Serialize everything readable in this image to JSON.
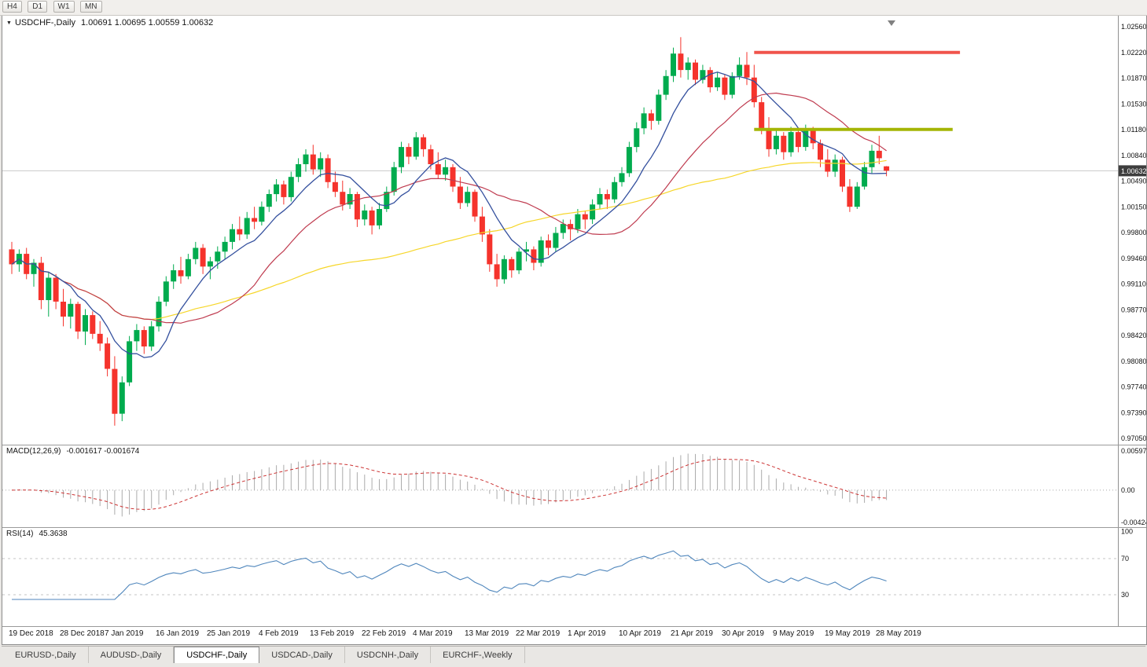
{
  "toolbar": {
    "timeframes": [
      {
        "label": "H4"
      },
      {
        "label": "D1"
      },
      {
        "label": "W1"
      },
      {
        "label": "MN"
      }
    ]
  },
  "window": {
    "title_symbol": "USDCHF-,Daily",
    "open": "1.00691",
    "high": "1.00695",
    "low": "1.00559",
    "close": "1.00632",
    "price_badge": "1.00632"
  },
  "macd_header": {
    "label": "MACD(12,26,9)",
    "values": "-0.001617 -0.001674"
  },
  "rsi_header": {
    "label": "RSI(14)",
    "value": "45.3638"
  },
  "tabs": [
    {
      "label": "EURUSD-,Daily",
      "active": false
    },
    {
      "label": "AUDUSD-,Daily",
      "active": false
    },
    {
      "label": "USDCHF-,Daily",
      "active": true
    },
    {
      "label": "USDCAD-,Daily",
      "active": false
    },
    {
      "label": "USDCNH-,Daily",
      "active": false
    },
    {
      "label": "EURCHF-,Weekly",
      "active": false
    }
  ],
  "colors": {
    "background": "#ffffff",
    "bull": "#00ab4e",
    "bear": "#f5332c",
    "ma_fast": "#34509e",
    "ma_mid": "#bf3b4f",
    "ma_slow": "#f6d629",
    "resistance": "#f0544c",
    "support": "#a4b505",
    "macd_histogram": "#ababab",
    "macd_signal": "#cc3333",
    "rsi_line": "#4f86bc",
    "grid": "#c9c9c9",
    "axis_line": "#909090",
    "badge_bg": "#3d3d3d"
  },
  "chart_data": {
    "type": "candlestick",
    "title": "USDCHF-,Daily",
    "y_axis": {
      "min": 0.9705,
      "max": 1.0256,
      "tick_labels": [
        "1.02560",
        "1.02220",
        "1.01870",
        "1.01530",
        "1.01180",
        "1.00840",
        "1.00490",
        "1.00150",
        "0.99800",
        "0.99460",
        "0.99110",
        "0.98770",
        "0.98420",
        "0.98080",
        "0.97740",
        "0.97390",
        "0.97050"
      ]
    },
    "x_axis": {
      "ticks": [
        {
          "i": 0,
          "label": "19 Dec 2018"
        },
        {
          "i": 7,
          "label": "28 Dec 2018"
        },
        {
          "i": 13,
          "label": "7 Jan 2019"
        },
        {
          "i": 20,
          "label": "16 Jan 2019"
        },
        {
          "i": 27,
          "label": "25 Jan 2019"
        },
        {
          "i": 34,
          "label": "4 Feb 2019"
        },
        {
          "i": 41,
          "label": "13 Feb 2019"
        },
        {
          "i": 48,
          "label": "22 Feb 2019"
        },
        {
          "i": 55,
          "label": "4 Mar 2019"
        },
        {
          "i": 62,
          "label": "13 Mar 2019"
        },
        {
          "i": 69,
          "label": "22 Mar 2019"
        },
        {
          "i": 76,
          "label": "1 Apr 2019"
        },
        {
          "i": 83,
          "label": "10 Apr 2019"
        },
        {
          "i": 90,
          "label": "21 Apr 2019"
        },
        {
          "i": 97,
          "label": "30 Apr 2019"
        },
        {
          "i": 104,
          "label": "9 May 2019"
        },
        {
          "i": 111,
          "label": "19 May 2019"
        },
        {
          "i": 118,
          "label": "28 May 2019"
        }
      ]
    },
    "ohlc": [
      [
        0.9958,
        0.9968,
        0.9925,
        0.9938
      ],
      [
        0.9938,
        0.9958,
        0.9928,
        0.9952
      ],
      [
        0.9952,
        0.996,
        0.9918,
        0.9925
      ],
      [
        0.9925,
        0.9945,
        0.9908,
        0.994
      ],
      [
        0.994,
        0.9948,
        0.9878,
        0.989
      ],
      [
        0.989,
        0.9928,
        0.9868,
        0.992
      ],
      [
        0.992,
        0.9925,
        0.9878,
        0.9888
      ],
      [
        0.9888,
        0.9905,
        0.9855,
        0.9868
      ],
      [
        0.9868,
        0.9892,
        0.9852,
        0.9885
      ],
      [
        0.9885,
        0.9888,
        0.9838,
        0.9848
      ],
      [
        0.9848,
        0.9878,
        0.983,
        0.987
      ],
      [
        0.987,
        0.9875,
        0.9838,
        0.9845
      ],
      [
        0.9845,
        0.9862,
        0.9822,
        0.9832
      ],
      [
        0.9832,
        0.984,
        0.9788,
        0.9798
      ],
      [
        0.9798,
        0.9815,
        0.9722,
        0.9738
      ],
      [
        0.9738,
        0.9788,
        0.9728,
        0.978
      ],
      [
        0.978,
        0.9842,
        0.9775,
        0.9835
      ],
      [
        0.9835,
        0.9858,
        0.9822,
        0.985
      ],
      [
        0.985,
        0.9855,
        0.9818,
        0.9828
      ],
      [
        0.9828,
        0.9862,
        0.9822,
        0.9855
      ],
      [
        0.9855,
        0.9895,
        0.9848,
        0.9888
      ],
      [
        0.9888,
        0.9922,
        0.9882,
        0.9915
      ],
      [
        0.9915,
        0.9938,
        0.9905,
        0.993
      ],
      [
        0.993,
        0.9948,
        0.9912,
        0.9922
      ],
      [
        0.9922,
        0.9952,
        0.9918,
        0.9945
      ],
      [
        0.9945,
        0.9968,
        0.9938,
        0.996
      ],
      [
        0.996,
        0.9965,
        0.9925,
        0.9935
      ],
      [
        0.9935,
        0.9948,
        0.9918,
        0.9942
      ],
      [
        0.9942,
        0.9962,
        0.9932,
        0.9955
      ],
      [
        0.9955,
        0.9975,
        0.9945,
        0.9968
      ],
      [
        0.9968,
        0.9992,
        0.9958,
        0.9985
      ],
      [
        0.9985,
        1.0002,
        0.997,
        0.9978
      ],
      [
        0.9978,
        1.0008,
        0.9972,
        1.0
      ],
      [
        1.0,
        1.0015,
        0.9985,
        0.9995
      ],
      [
        0.9995,
        1.0022,
        0.999,
        1.0015
      ],
      [
        1.0015,
        1.0038,
        1.0008,
        1.0032
      ],
      [
        1.0032,
        1.0052,
        1.0022,
        1.0045
      ],
      [
        1.0045,
        1.005,
        1.0018,
        1.0028
      ],
      [
        1.0028,
        1.0062,
        1.0022,
        1.0055
      ],
      [
        1.0055,
        1.008,
        1.0048,
        1.0072
      ],
      [
        1.0072,
        1.0092,
        1.0062,
        1.0085
      ],
      [
        1.0085,
        1.0098,
        1.0058,
        1.0065
      ],
      [
        1.0065,
        1.0088,
        1.0055,
        1.008
      ],
      [
        1.008,
        1.0085,
        1.004,
        1.0048
      ],
      [
        1.0048,
        1.0062,
        1.0028,
        1.0035
      ],
      [
        1.0035,
        1.005,
        1.001,
        1.0018
      ],
      [
        1.0018,
        1.004,
        1.0012,
        1.0032
      ],
      [
        1.0032,
        1.0035,
        0.9988,
        0.9998
      ],
      [
        0.9998,
        1.0018,
        0.999,
        1.001
      ],
      [
        1.001,
        1.0015,
        0.9978,
        0.999
      ],
      [
        0.999,
        1.002,
        0.9985,
        1.0012
      ],
      [
        1.0012,
        1.0042,
        1.0008,
        1.0035
      ],
      [
        1.0035,
        1.0075,
        1.003,
        1.0068
      ],
      [
        1.0068,
        1.0102,
        1.006,
        1.0095
      ],
      [
        1.0095,
        1.01,
        1.0072,
        1.0082
      ],
      [
        1.0082,
        1.0115,
        1.0078,
        1.0108
      ],
      [
        1.0108,
        1.0112,
        1.0082,
        1.0092
      ],
      [
        1.0092,
        1.0098,
        1.0065,
        1.0072
      ],
      [
        1.0072,
        1.0088,
        1.0052,
        1.0058
      ],
      [
        1.0058,
        1.0078,
        1.005,
        1.0068
      ],
      [
        1.0068,
        1.0072,
        1.0035,
        1.0042
      ],
      [
        1.0042,
        1.0055,
        1.0012,
        1.002
      ],
      [
        1.002,
        1.0042,
        1.0015,
        1.0035
      ],
      [
        1.0035,
        1.0038,
        0.9995,
        1.0002
      ],
      [
        1.0002,
        1.0015,
        0.9968,
        0.9978
      ],
      [
        0.9978,
        0.9985,
        0.9928,
        0.9938
      ],
      [
        0.9938,
        0.9952,
        0.9908,
        0.9918
      ],
      [
        0.9918,
        0.995,
        0.9912,
        0.9945
      ],
      [
        0.9945,
        0.9948,
        0.992,
        0.993
      ],
      [
        0.993,
        0.996,
        0.9925,
        0.9955
      ],
      [
        0.9955,
        0.9968,
        0.9942,
        0.9958
      ],
      [
        0.9958,
        0.9962,
        0.993,
        0.994
      ],
      [
        0.994,
        0.9975,
        0.9935,
        0.997
      ],
      [
        0.997,
        0.9978,
        0.995,
        0.996
      ],
      [
        0.996,
        0.9988,
        0.9955,
        0.998
      ],
      [
        0.998,
        0.9998,
        0.9972,
        0.9992
      ],
      [
        0.9992,
        0.9998,
        0.997,
        0.9985
      ],
      [
        0.9985,
        1.0012,
        0.998,
        1.0005
      ],
      [
        1.0005,
        1.001,
        0.9985,
        0.9998
      ],
      [
        0.9998,
        1.0025,
        0.9992,
        1.0018
      ],
      [
        1.0018,
        1.004,
        1.0012,
        1.0032
      ],
      [
        1.0032,
        1.0038,
        1.0012,
        1.0025
      ],
      [
        1.0025,
        1.0055,
        1.002,
        1.0048
      ],
      [
        1.0048,
        1.0068,
        1.0042,
        1.006
      ],
      [
        1.006,
        1.0102,
        1.0055,
        1.0095
      ],
      [
        1.0095,
        1.0128,
        1.0088,
        1.012
      ],
      [
        1.012,
        1.0148,
        1.0112,
        1.014
      ],
      [
        1.014,
        1.0145,
        1.0118,
        1.013
      ],
      [
        1.013,
        1.0172,
        1.0125,
        1.0165
      ],
      [
        1.0165,
        1.0198,
        1.0158,
        1.019
      ],
      [
        1.019,
        1.0228,
        1.0182,
        1.022
      ],
      [
        1.022,
        1.0242,
        1.0188,
        1.0198
      ],
      [
        1.0198,
        1.0215,
        1.0185,
        1.0208
      ],
      [
        1.0208,
        1.0212,
        1.0178,
        1.0185
      ],
      [
        1.0185,
        1.0205,
        1.018,
        1.0198
      ],
      [
        1.0198,
        1.0202,
        1.0168,
        1.0175
      ],
      [
        1.0175,
        1.0195,
        1.017,
        1.0188
      ],
      [
        1.0188,
        1.0192,
        1.0158,
        1.0165
      ],
      [
        1.0165,
        1.0195,
        1.016,
        1.019
      ],
      [
        1.019,
        1.0215,
        1.0185,
        1.0205
      ],
      [
        1.0205,
        1.0222,
        1.0178,
        1.0188
      ],
      [
        1.0188,
        1.0205,
        1.0148,
        1.0155
      ],
      [
        1.0155,
        1.0162,
        1.0112,
        1.012
      ],
      [
        1.012,
        1.0135,
        1.0082,
        1.0092
      ],
      [
        1.0092,
        1.0118,
        1.0085,
        1.011
      ],
      [
        1.011,
        1.0115,
        1.0078,
        1.0088
      ],
      [
        1.0088,
        1.0122,
        1.0082,
        1.0115
      ],
      [
        1.0115,
        1.0118,
        1.0088,
        1.0095
      ],
      [
        1.0095,
        1.0125,
        1.009,
        1.0118
      ],
      [
        1.0118,
        1.0122,
        1.0092,
        1.01
      ],
      [
        1.01,
        1.0105,
        1.0068,
        1.0078
      ],
      [
        1.0078,
        1.0092,
        1.0055,
        1.0062
      ],
      [
        1.0062,
        1.0085,
        1.0055,
        1.0078
      ],
      [
        1.0078,
        1.0082,
        1.0035,
        1.0042
      ],
      [
        1.0042,
        1.0052,
        1.0008,
        1.0015
      ],
      [
        1.0015,
        1.0048,
        1.0012,
        1.0042
      ],
      [
        1.0042,
        1.0075,
        1.0038,
        1.0068
      ],
      [
        1.0068,
        1.0098,
        1.006,
        1.009
      ],
      [
        1.009,
        1.011,
        1.0072,
        1.008
      ],
      [
        1.00691,
        1.00695,
        1.00559,
        1.00632
      ]
    ],
    "overlays": {
      "current_price": 1.00632,
      "moving_averages": [
        {
          "name": "fast-ma",
          "period": 8,
          "color_key": "ma_fast"
        },
        {
          "name": "mid-ma",
          "period": 20,
          "color_key": "ma_mid"
        },
        {
          "name": "slow-ma",
          "period": 55,
          "color_key": "ma_slow"
        }
      ],
      "hlines": [
        {
          "name": "resistance-line",
          "price": 1.02215,
          "color_key": "resistance",
          "width": 4,
          "from_index": 101,
          "to_index": 129
        },
        {
          "name": "support-line",
          "price": 1.01185,
          "color_key": "support",
          "width": 4,
          "from_index": 101,
          "to_index": 128
        }
      ]
    },
    "indicators": {
      "macd": {
        "fast": 12,
        "slow": 26,
        "signal": 9,
        "value": -0.001617,
        "signal_value": -0.001674,
        "axis_labels": [
          "0.00597",
          "0.00",
          "-0.00424"
        ]
      },
      "rsi": {
        "period": 14,
        "value": 45.3638,
        "levels": [
          70,
          30
        ],
        "axis_labels": [
          "100",
          "70",
          "30"
        ]
      }
    }
  }
}
